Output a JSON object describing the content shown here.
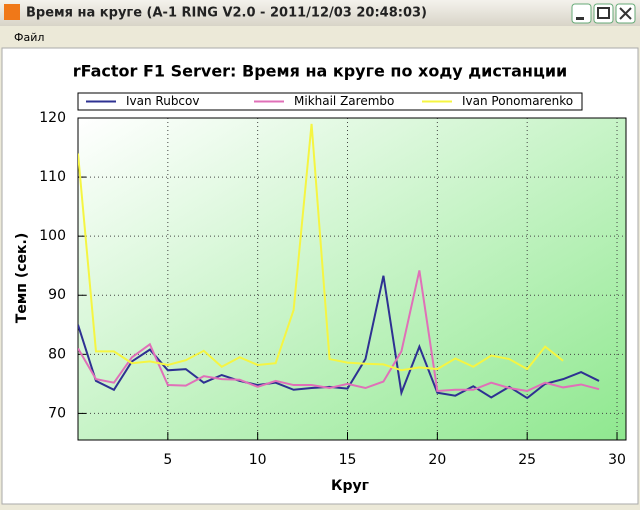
{
  "window": {
    "title": "Время на круге (A-1 RING V2.0 - 2011/12/03 20:48:03)",
    "menu": [
      "Файл"
    ]
  },
  "chart_data": {
    "type": "line",
    "title": "rFactor F1 Server: Время на круге по ходу дистанции",
    "x_label": "Круг",
    "y_label": "Темп (сек.)",
    "x": [
      0,
      1,
      2,
      3,
      4,
      5,
      6,
      7,
      8,
      9,
      10,
      11,
      12,
      13,
      14,
      15,
      16,
      17,
      18,
      19,
      20,
      21,
      22,
      23,
      24,
      25,
      26,
      27,
      28,
      29
    ],
    "series": [
      {
        "name": "Ivan Rubcov",
        "color": "#2e3192",
        "values": [
          85,
          75.5,
          74,
          78.8,
          80.8,
          77.3,
          77.5,
          75.2,
          76.5,
          75.5,
          74.8,
          75.2,
          74,
          74.3,
          74.5,
          74.2,
          79.2,
          93.3,
          73.5,
          81.3,
          73.5,
          73,
          74.6,
          72.7,
          74.5,
          72.6,
          75,
          75.8,
          77,
          75.5
        ]
      },
      {
        "name": "Mikhail Zarembo",
        "color": "#e070b8",
        "values": [
          81,
          75.8,
          75.2,
          79.5,
          81.7,
          74.8,
          74.7,
          76.3,
          75.8,
          75.7,
          74.5,
          75.5,
          74.8,
          74.8,
          74.3,
          75,
          74.3,
          75.4,
          80.5,
          94.2,
          73.8,
          74,
          74,
          75.2,
          74.3,
          73.8,
          75.2,
          74.4,
          74.9,
          74.1
        ]
      },
      {
        "name": "Ivan Ponomarenko",
        "color": "#f5f542",
        "values": [
          114,
          80.5,
          80.5,
          78.5,
          78.8,
          78.2,
          79,
          80.6,
          77.9,
          79.5,
          78.2,
          78.5,
          87.5,
          119,
          79.2,
          78.6,
          78.4,
          78.3,
          77.3,
          77.8,
          77.5,
          79.3,
          77.9,
          79.8,
          79.2,
          77.5,
          81.3,
          78.9,
          null,
          null
        ]
      }
    ],
    "xlim": [
      0,
      30.5
    ],
    "ylim": [
      65.5,
      120
    ],
    "xticks": [
      5,
      10,
      15,
      20,
      25,
      30
    ],
    "yticks": [
      70,
      80,
      90,
      100,
      110,
      120
    ],
    "grid": true,
    "legend": "top"
  }
}
